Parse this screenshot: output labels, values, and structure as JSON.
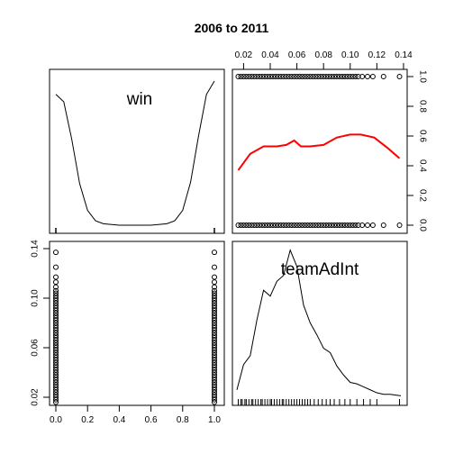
{
  "chart_data": {
    "type": "scatter-matrix",
    "title": "2006 to 2011",
    "variables": [
      "win",
      "teamAdInt"
    ],
    "win_axis": {
      "range": [
        0,
        1
      ],
      "ticks": [
        "0.0",
        "0.2",
        "0.4",
        "0.6",
        "0.8",
        "1.0"
      ]
    },
    "teamAdInt_axis": {
      "range": [
        0.015,
        0.138
      ],
      "ticks": [
        "0.02",
        "0.04",
        "0.06",
        "0.08",
        "0.10",
        "0.12",
        "0.14"
      ],
      "ticks_left": [
        "0.02",
        "0.06",
        "0.10",
        "0.14"
      ]
    },
    "diag_win_density": {
      "x": [
        0.0,
        0.05,
        0.1,
        0.15,
        0.2,
        0.25,
        0.3,
        0.4,
        0.5,
        0.6,
        0.7,
        0.75,
        0.8,
        0.85,
        0.9,
        0.95,
        1.0
      ],
      "y": [
        0.88,
        0.83,
        0.58,
        0.28,
        0.1,
        0.03,
        0.01,
        0.0,
        0.0,
        0.0,
        0.01,
        0.03,
        0.1,
        0.29,
        0.6,
        0.88,
        0.97
      ],
      "rug": [
        0,
        1
      ]
    },
    "smoother_win_vs_teamAdInt": {
      "x": [
        0.016,
        0.025,
        0.035,
        0.045,
        0.052,
        0.058,
        0.063,
        0.07,
        0.08,
        0.09,
        0.1,
        0.108,
        0.118,
        0.128,
        0.137
      ],
      "y": [
        0.37,
        0.48,
        0.53,
        0.53,
        0.54,
        0.57,
        0.53,
        0.53,
        0.54,
        0.59,
        0.61,
        0.61,
        0.59,
        0.52,
        0.45
      ],
      "color": "#ff0000"
    },
    "scatter_teamAdInt_points": [
      0.016,
      0.018,
      0.02,
      0.022,
      0.024,
      0.026,
      0.028,
      0.03,
      0.032,
      0.034,
      0.036,
      0.038,
      0.04,
      0.042,
      0.044,
      0.046,
      0.048,
      0.05,
      0.052,
      0.054,
      0.056,
      0.058,
      0.06,
      0.062,
      0.064,
      0.066,
      0.068,
      0.07,
      0.072,
      0.074,
      0.076,
      0.078,
      0.08,
      0.082,
      0.084,
      0.086,
      0.088,
      0.09,
      0.092,
      0.094,
      0.096,
      0.098,
      0.1,
      0.102,
      0.104,
      0.106,
      0.109,
      0.113,
      0.117,
      0.125,
      0.137
    ],
    "diag_teamAdInt_density": {
      "x": [
        0.015,
        0.02,
        0.025,
        0.03,
        0.035,
        0.04,
        0.045,
        0.05,
        0.055,
        0.06,
        0.065,
        0.07,
        0.075,
        0.08,
        0.085,
        0.09,
        0.095,
        0.1,
        0.105,
        0.11,
        0.115,
        0.12,
        0.125,
        0.13,
        0.138
      ],
      "y": [
        0.05,
        0.22,
        0.28,
        0.52,
        0.72,
        0.68,
        0.78,
        0.82,
        0.99,
        0.88,
        0.62,
        0.5,
        0.42,
        0.33,
        0.3,
        0.21,
        0.15,
        0.1,
        0.09,
        0.07,
        0.05,
        0.03,
        0.02,
        0.02,
        0.01
      ],
      "rug": [
        0.016,
        0.018,
        0.019,
        0.021,
        0.022,
        0.024,
        0.026,
        0.027,
        0.029,
        0.031,
        0.033,
        0.034,
        0.036,
        0.038,
        0.04,
        0.041,
        0.043,
        0.045,
        0.047,
        0.049,
        0.05,
        0.052,
        0.054,
        0.056,
        0.058,
        0.06,
        0.062,
        0.064,
        0.066,
        0.068,
        0.07,
        0.073,
        0.076,
        0.079,
        0.082,
        0.085,
        0.088,
        0.092,
        0.096,
        0.1,
        0.105,
        0.11,
        0.115,
        0.12,
        0.137
      ]
    }
  }
}
